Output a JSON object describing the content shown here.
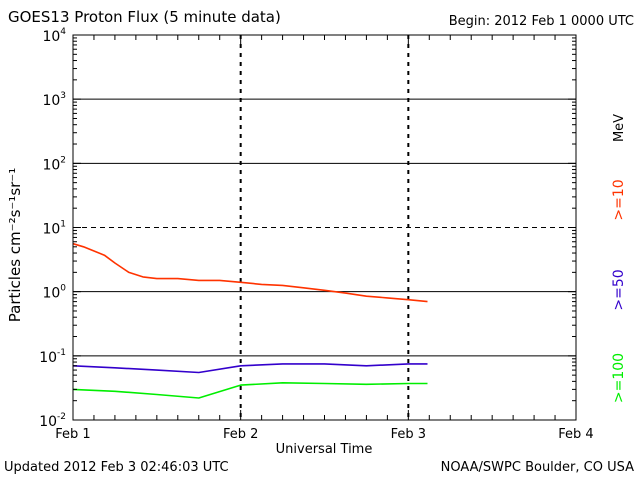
{
  "header": {
    "title": "GOES13 Proton Flux (5 minute data)",
    "begin": "Begin: 2012 Feb 1 0000 UTC"
  },
  "footer": {
    "updated": "Updated 2012 Feb  3 02:46:03 UTC",
    "credit": "NOAA/SWPC Boulder, CO USA"
  },
  "chart_data": {
    "type": "line",
    "title": "GOES13 Proton Flux (5 minute data)",
    "xlabel": "Universal Time",
    "ylabel": "Particles cm⁻²s⁻¹sr⁻¹",
    "yscale": "log",
    "ylim": [
      0.01,
      10000
    ],
    "xlim": [
      "2012-02-01T00:00",
      "2012-02-04T00:00"
    ],
    "x_ticks": [
      "Feb 1",
      "Feb 2",
      "Feb 3",
      "Feb 4"
    ],
    "y_ticks": [
      {
        "base": "10",
        "exp": "-2"
      },
      {
        "base": "10",
        "exp": "-1"
      },
      {
        "base": "10",
        "exp": "0"
      },
      {
        "base": "10",
        "exp": "1"
      },
      {
        "base": "10",
        "exp": "2"
      },
      {
        "base": "10",
        "exp": "3"
      },
      {
        "base": "10",
        "exp": "4"
      }
    ],
    "grid": "solid lines at 1e-1, 1, 1e2, 1e3; dashed at 10; dashed verticals at Feb 2 and Feb 3",
    "legend_placement": "right-vertical",
    "unit_label": "MeV",
    "series": [
      {
        "name": ">=10",
        "color": "#ff3300",
        "points": [
          [
            "2012-02-01T00:00",
            5.6
          ],
          [
            "2012-02-01T01:30",
            5.0
          ],
          [
            "2012-02-01T03:00",
            4.3
          ],
          [
            "2012-02-01T04:30",
            3.7
          ],
          [
            "2012-02-01T06:00",
            2.8
          ],
          [
            "2012-02-01T08:00",
            2.0
          ],
          [
            "2012-02-01T10:00",
            1.7
          ],
          [
            "2012-02-01T12:00",
            1.6
          ],
          [
            "2012-02-01T15:00",
            1.6
          ],
          [
            "2012-02-01T18:00",
            1.5
          ],
          [
            "2012-02-01T21:00",
            1.5
          ],
          [
            "2012-02-02T00:00",
            1.4
          ],
          [
            "2012-02-02T03:00",
            1.3
          ],
          [
            "2012-02-02T06:00",
            1.25
          ],
          [
            "2012-02-02T09:00",
            1.15
          ],
          [
            "2012-02-02T12:00",
            1.05
          ],
          [
            "2012-02-02T15:00",
            0.95
          ],
          [
            "2012-02-02T18:00",
            0.85
          ],
          [
            "2012-02-02T21:00",
            0.8
          ],
          [
            "2012-02-03T00:00",
            0.75
          ],
          [
            "2012-02-03T02:45",
            0.7
          ]
        ]
      },
      {
        "name": ">=50",
        "color": "#3300cc",
        "points": [
          [
            "2012-02-01T00:00",
            0.07
          ],
          [
            "2012-02-01T06:00",
            0.065
          ],
          [
            "2012-02-01T12:00",
            0.06
          ],
          [
            "2012-02-01T18:00",
            0.055
          ],
          [
            "2012-02-02T00:00",
            0.07
          ],
          [
            "2012-02-02T06:00",
            0.075
          ],
          [
            "2012-02-02T12:00",
            0.075
          ],
          [
            "2012-02-02T18:00",
            0.07
          ],
          [
            "2012-02-03T00:00",
            0.075
          ],
          [
            "2012-02-03T02:45",
            0.075
          ]
        ]
      },
      {
        "name": ">=100",
        "color": "#00ee00",
        "points": [
          [
            "2012-02-01T00:00",
            0.03
          ],
          [
            "2012-02-01T06:00",
            0.028
          ],
          [
            "2012-02-01T12:00",
            0.025
          ],
          [
            "2012-02-01T18:00",
            0.022
          ],
          [
            "2012-02-02T00:00",
            0.035
          ],
          [
            "2012-02-02T06:00",
            0.038
          ],
          [
            "2012-02-02T12:00",
            0.037
          ],
          [
            "2012-02-02T18:00",
            0.036
          ],
          [
            "2012-02-03T00:00",
            0.037
          ],
          [
            "2012-02-03T02:45",
            0.037
          ]
        ]
      }
    ]
  }
}
